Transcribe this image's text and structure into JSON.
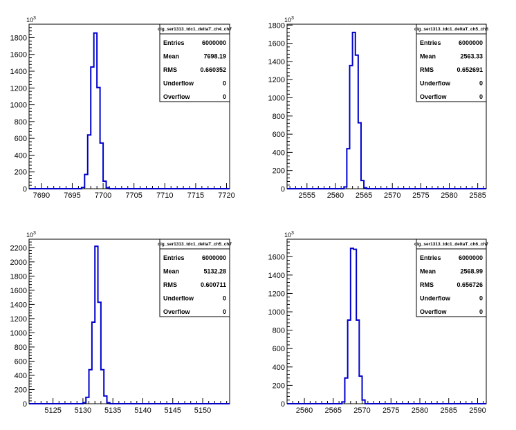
{
  "chart_data": [
    {
      "type": "histogram",
      "title": "dig_ser1313_tdc1_deltaT_ch4_ch7",
      "y_exponent": "10",
      "y_exponent_power": "3",
      "xlim": [
        7688,
        7720.5
      ],
      "ylim": [
        0,
        1960
      ],
      "xticks": [
        7690,
        7695,
        7700,
        7705,
        7710,
        7715,
        7720
      ],
      "yticks": [
        0,
        200,
        400,
        600,
        800,
        1000,
        1200,
        1400,
        1600,
        1800
      ],
      "bin_width": 0.5,
      "bins": [
        [
          7696.5,
          15
        ],
        [
          7697.0,
          170
        ],
        [
          7697.5,
          640
        ],
        [
          7698.0,
          1450
        ],
        [
          7698.5,
          1855
        ],
        [
          7699.0,
          1205
        ],
        [
          7699.5,
          545
        ],
        [
          7700.0,
          90
        ],
        [
          7700.5,
          12
        ]
      ],
      "stats": [
        {
          "label": "Entries",
          "value": "6000000"
        },
        {
          "label": "Mean",
          "value": "7698.19"
        },
        {
          "label": "RMS",
          "value": "0.660352"
        },
        {
          "label": "Underflow",
          "value": "0"
        },
        {
          "label": "Overflow",
          "value": "0"
        }
      ]
    },
    {
      "type": "histogram",
      "title": "dig_ser1313_tdc1_deltaT_ch5_ch6",
      "y_exponent": "10",
      "y_exponent_power": "3",
      "xlim": [
        2551.5,
        2586.5
      ],
      "ylim": [
        0,
        1810
      ],
      "xticks": [
        2555,
        2560,
        2565,
        2570,
        2575,
        2580,
        2585
      ],
      "yticks": [
        0,
        200,
        400,
        600,
        800,
        1000,
        1200,
        1400,
        1600,
        1800
      ],
      "bin_width": 0.5,
      "bins": [
        [
          2561.5,
          20
        ],
        [
          2562.0,
          440
        ],
        [
          2562.5,
          1355
        ],
        [
          2563.0,
          1720
        ],
        [
          2563.5,
          1470
        ],
        [
          2564.0,
          725
        ],
        [
          2564.5,
          90
        ],
        [
          2565.0,
          10
        ]
      ],
      "stats": [
        {
          "label": "Entries",
          "value": "6000000"
        },
        {
          "label": "Mean",
          "value": "2563.33"
        },
        {
          "label": "RMS",
          "value": "0.652691"
        },
        {
          "label": "Underflow",
          "value": "0"
        },
        {
          "label": "Overflow",
          "value": "0"
        }
      ]
    },
    {
      "type": "histogram",
      "title": "dig_ser1313_tdc1_deltaT_ch5_ch7",
      "y_exponent": "10",
      "y_exponent_power": "3",
      "xlim": [
        5121,
        5154.5
      ],
      "ylim": [
        0,
        2320
      ],
      "xticks": [
        5125,
        5130,
        5135,
        5140,
        5145,
        5150
      ],
      "yticks": [
        0,
        200,
        400,
        600,
        800,
        1000,
        1200,
        1400,
        1600,
        1800,
        2000,
        2200
      ],
      "bin_width": 0.5,
      "bins": [
        [
          5130.0,
          15
        ],
        [
          5130.5,
          90
        ],
        [
          5131.0,
          480
        ],
        [
          5131.5,
          1150
        ],
        [
          5132.0,
          2220
        ],
        [
          5132.5,
          1430
        ],
        [
          5133.0,
          480
        ],
        [
          5133.5,
          110
        ],
        [
          5134.0,
          15
        ]
      ],
      "stats": [
        {
          "label": "Entries",
          "value": "6000000"
        },
        {
          "label": "Mean",
          "value": "5132.28"
        },
        {
          "label": "RMS",
          "value": "0.600711"
        },
        {
          "label": "Underflow",
          "value": "0"
        },
        {
          "label": "Overflow",
          "value": "0"
        }
      ]
    },
    {
      "type": "histogram",
      "title": "dig_ser1313_tdc1_deltaT_ch6_ch7",
      "y_exponent": "10",
      "y_exponent_power": "3",
      "xlim": [
        2557,
        2591.5
      ],
      "ylim": [
        0,
        1790
      ],
      "xticks": [
        2560,
        2565,
        2570,
        2575,
        2580,
        2585,
        2590
      ],
      "yticks": [
        0,
        200,
        400,
        600,
        800,
        1000,
        1200,
        1400,
        1600
      ],
      "bin_width": 0.5,
      "bins": [
        [
          2566.5,
          20
        ],
        [
          2567.0,
          280
        ],
        [
          2567.5,
          910
        ],
        [
          2568.0,
          1690
        ],
        [
          2568.5,
          1680
        ],
        [
          2569.0,
          910
        ],
        [
          2569.5,
          300
        ],
        [
          2570.0,
          40
        ]
      ],
      "stats": [
        {
          "label": "Entries",
          "value": "6000000"
        },
        {
          "label": "Mean",
          "value": "2568.99"
        },
        {
          "label": "RMS",
          "value": "0.656726"
        },
        {
          "label": "Underflow",
          "value": "0"
        },
        {
          "label": "Overflow",
          "value": "0"
        }
      ]
    }
  ],
  "colors": {
    "histogram_line": "#0000cc",
    "axis": "#000000",
    "background": "#ffffff"
  }
}
